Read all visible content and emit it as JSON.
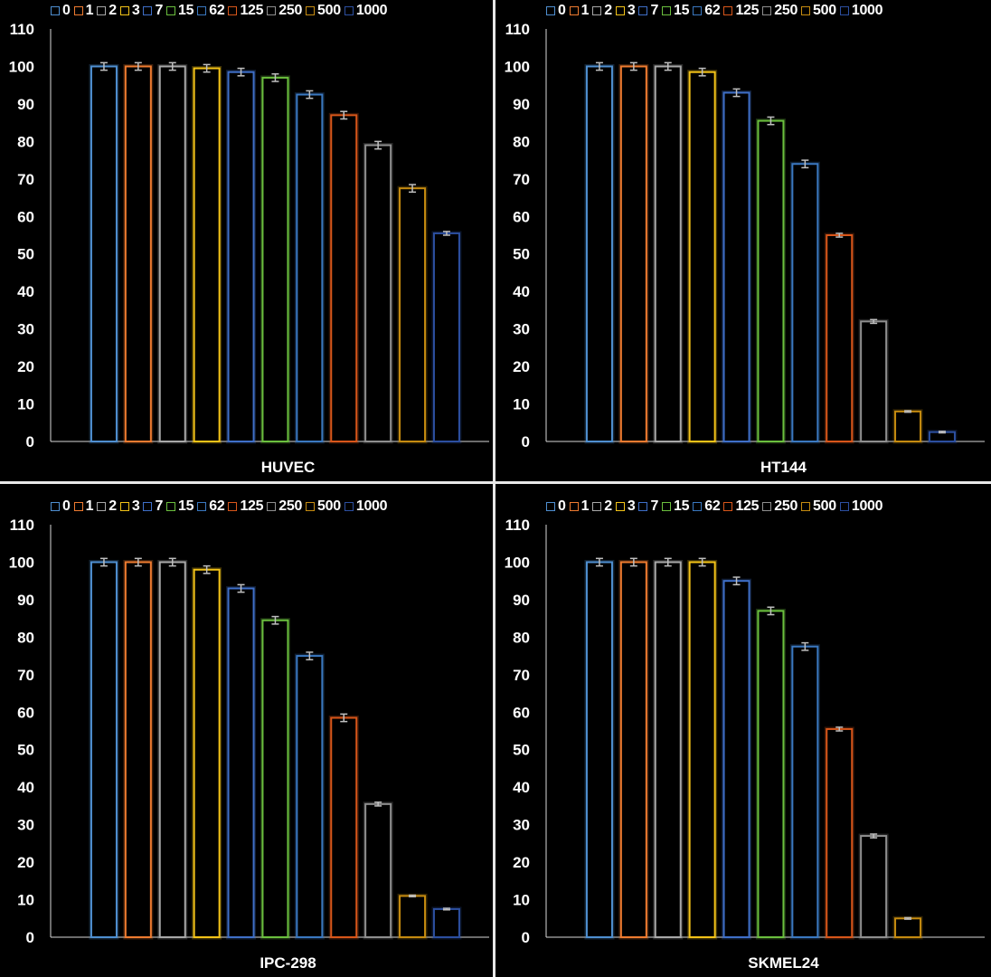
{
  "legend_labels": [
    "0",
    "1",
    "2",
    "3",
    "7",
    "15",
    "62",
    "125",
    "250",
    "500",
    "1000"
  ],
  "series_colors": [
    "#4f8fd0",
    "#ee7b30",
    "#a8a8a8",
    "#f3c318",
    "#3f6fc8",
    "#6bbf3e",
    "#3a78c0",
    "#d8561a",
    "#8f8f8f",
    "#c58b10",
    "#2c4fa0"
  ],
  "chart_data": [
    {
      "type": "bar",
      "title": "HUVEC",
      "series_names": [
        "0",
        "1",
        "2",
        "3",
        "7",
        "15",
        "62",
        "125",
        "250",
        "500",
        "1000"
      ],
      "values": [
        100,
        100,
        100,
        99.5,
        98.5,
        97,
        92.5,
        87,
        79,
        67.5,
        55.5
      ],
      "errors": [
        1,
        1,
        1,
        1,
        1,
        1,
        1,
        1,
        1,
        1,
        0.5
      ],
      "ylim": [
        0,
        110
      ],
      "yticks": [
        0,
        10,
        20,
        30,
        40,
        50,
        60,
        70,
        80,
        90,
        100,
        110
      ],
      "legend_position": "top"
    },
    {
      "type": "bar",
      "title": "HT144",
      "series_names": [
        "0",
        "1",
        "2",
        "3",
        "7",
        "15",
        "62",
        "125",
        "250",
        "500",
        "1000"
      ],
      "values": [
        100,
        100,
        100,
        98.5,
        93,
        85.5,
        74,
        55,
        32,
        8,
        2.5
      ],
      "errors": [
        1,
        1,
        1,
        1,
        1,
        1,
        1,
        0.5,
        0.5,
        0.2,
        0.2
      ],
      "ylim": [
        0,
        110
      ],
      "yticks": [
        0,
        10,
        20,
        30,
        40,
        50,
        60,
        70,
        80,
        90,
        100,
        110
      ],
      "legend_position": "top"
    },
    {
      "type": "bar",
      "title": "IPC-298",
      "series_names": [
        "0",
        "1",
        "2",
        "3",
        "7",
        "15",
        "62",
        "125",
        "250",
        "500",
        "1000"
      ],
      "values": [
        100,
        100,
        100,
        98,
        93,
        84.5,
        75,
        58.5,
        35.5,
        11,
        7.5
      ],
      "errors": [
        1,
        1,
        1,
        1,
        1,
        1,
        1,
        1,
        0.5,
        0.2,
        0.2
      ],
      "ylim": [
        0,
        110
      ],
      "yticks": [
        0,
        10,
        20,
        30,
        40,
        50,
        60,
        70,
        80,
        90,
        100,
        110
      ],
      "legend_position": "top"
    },
    {
      "type": "bar",
      "title": "SKMEL24",
      "series_names": [
        "0",
        "1",
        "2",
        "3",
        "7",
        "15",
        "62",
        "125",
        "250",
        "500",
        "1000"
      ],
      "values": [
        100,
        100,
        100,
        100,
        95,
        87,
        77.5,
        55.5,
        27,
        5,
        0
      ],
      "errors": [
        1,
        1,
        1,
        1,
        1,
        1,
        1,
        0.5,
        0.5,
        0.2,
        0
      ],
      "ylim": [
        0,
        110
      ],
      "yticks": [
        0,
        10,
        20,
        30,
        40,
        50,
        60,
        70,
        80,
        90,
        100,
        110
      ],
      "legend_position": "top"
    }
  ]
}
